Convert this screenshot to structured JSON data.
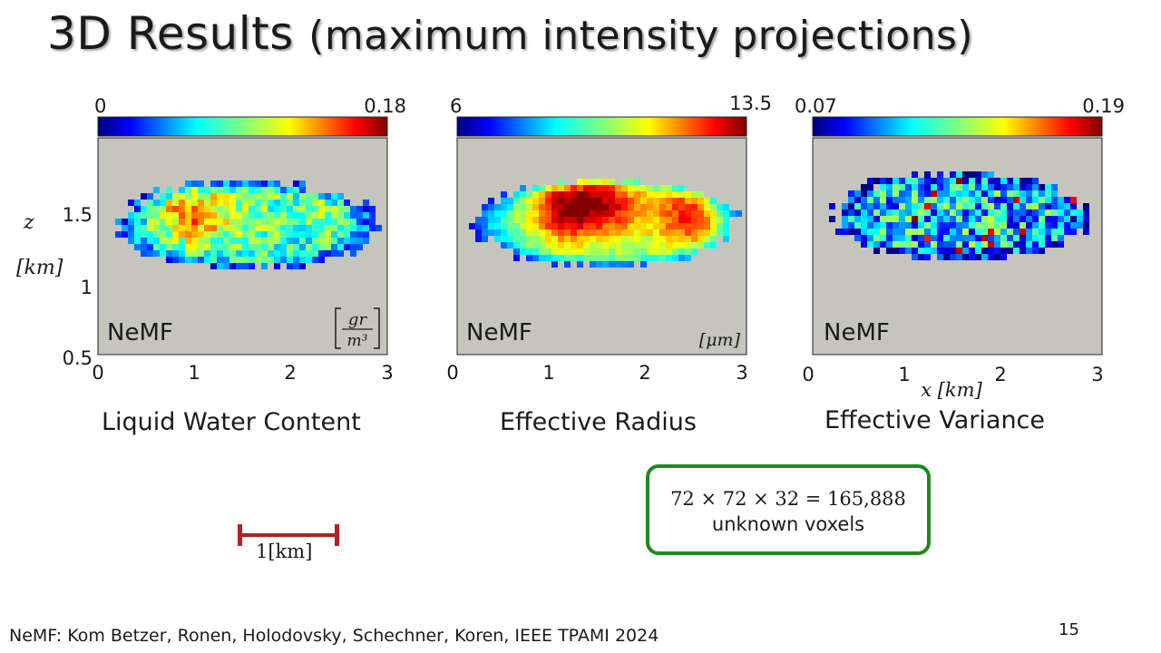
{
  "title": {
    "main": "3D Results",
    "sub": "(maximum intensity projections)"
  },
  "panels": [
    {
      "id": "lwc",
      "colorbar_min": "0",
      "colorbar_max": "0.18",
      "model_label": "NeMF",
      "unit": "gr/m3",
      "caption": "Liquid Water Content"
    },
    {
      "id": "reff",
      "colorbar_min": "6",
      "colorbar_max": "13.5",
      "model_label": "NeMF",
      "unit": "[μm]",
      "caption": "Effective Radius"
    },
    {
      "id": "veff",
      "colorbar_min": "0.07",
      "colorbar_max": "0.19",
      "model_label": "NeMF",
      "unit": "",
      "caption": "Effective Variance"
    }
  ],
  "axes": {
    "x_ticks": [
      "0",
      "1",
      "2",
      "3"
    ],
    "y_ticks": [
      "1.5",
      "1",
      "0.5"
    ],
    "y_label_var": "z",
    "y_label_unit": "[km]",
    "x_label": "x [km]"
  },
  "scale_bar": {
    "label": "1[km]"
  },
  "voxel_box": {
    "equation": "72 × 72 × 32 = 165,888",
    "text": "unknown voxels"
  },
  "footer": "NeMF: Kom Betzer, Ronen, Holodovsky, Schechner, Koren, IEEE TPAMI 2024",
  "page_number": "15",
  "colors": {
    "panel_bg": "#c6c5bd",
    "box_border": "#1e8a1e",
    "scale_bar": "#b22222"
  }
}
